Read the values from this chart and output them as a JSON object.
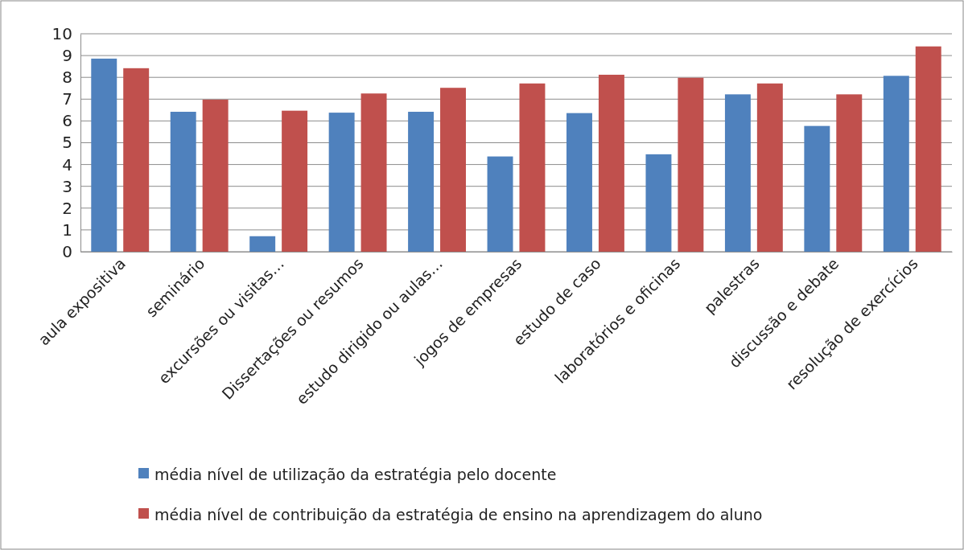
{
  "chart_data": {
    "type": "bar",
    "categories": [
      "aula expositiva",
      "seminário",
      "excursões ou visitas…",
      "Dissertações ou resumos",
      "estudo dirigido ou aulas…",
      "jogos de empresas",
      "estudo de caso",
      "laboratórios e oficinas",
      "palestras",
      "discussão e debate",
      "resolução de exercícios"
    ],
    "series": [
      {
        "name": "média nível de utilização da estratégia pelo docente",
        "color": "#4f81bd",
        "values": [
          8.86,
          6.42,
          0.71,
          6.38,
          6.42,
          4.37,
          6.36,
          4.47,
          7.22,
          5.77,
          8.07
        ]
      },
      {
        "name": "média nível de contribuição da estratégia de ensino na aprendizagem do aluno",
        "color": "#c0504d",
        "values": [
          8.42,
          6.98,
          6.47,
          7.26,
          7.52,
          7.72,
          8.12,
          7.98,
          7.72,
          7.22,
          9.42
        ]
      }
    ],
    "ylim": [
      0,
      10
    ],
    "yticks": [
      0,
      1,
      2,
      3,
      4,
      5,
      6,
      7,
      8,
      9,
      10
    ],
    "grid": "y",
    "legend": "bottom"
  }
}
